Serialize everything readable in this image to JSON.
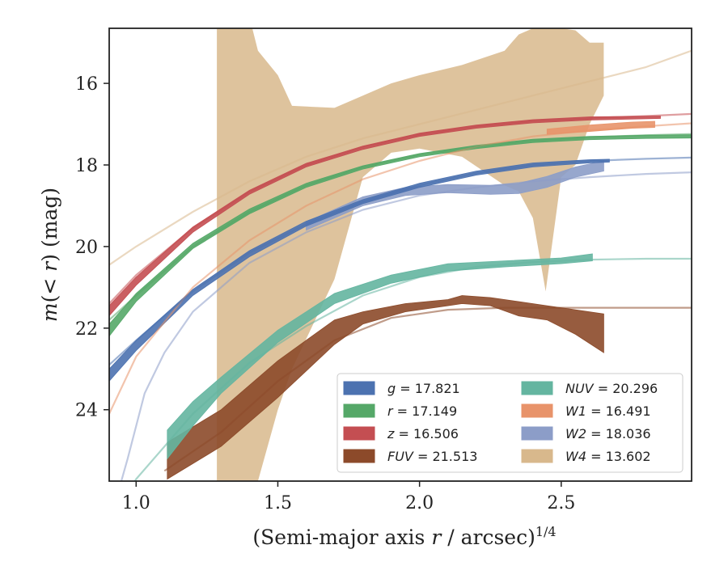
{
  "chart_data": {
    "type": "area",
    "title": "",
    "xlabel_pre": "(Semi-major axis ",
    "xlabel_var": "r",
    "xlabel_post": " / arcsec)",
    "xlabel_sup": "1/4",
    "ylabel_m": "m",
    "ylabel_mid": "(< ",
    "ylabel_r": "r",
    "ylabel_post": ") (mag)",
    "xlim": [
      0.905,
      2.96
    ],
    "ylim": [
      25.75,
      14.65
    ],
    "y_inverted": true,
    "grid": false,
    "legend_position": "lower-right",
    "xticks": [
      {
        "value": 1.0,
        "label": "1.0"
      },
      {
        "value": 1.5,
        "label": "1.5"
      },
      {
        "value": 2.0,
        "label": "2.0"
      },
      {
        "value": 2.5,
        "label": "2.5"
      }
    ],
    "yticks": [
      {
        "value": 16,
        "label": "16"
      },
      {
        "value": 18,
        "label": "18"
      },
      {
        "value": 20,
        "label": "20"
      },
      {
        "value": 22,
        "label": "22"
      },
      {
        "value": 24,
        "label": "24"
      }
    ],
    "series": [
      {
        "key": "g",
        "band": "g",
        "value": "17.821",
        "color": "#4c72b0",
        "legend_col": 0,
        "model": [
          [
            0.905,
            22.9
          ],
          [
            1.0,
            22.3
          ],
          [
            1.2,
            21.1
          ],
          [
            1.4,
            20.15
          ],
          [
            1.6,
            19.45
          ],
          [
            1.8,
            18.9
          ],
          [
            2.0,
            18.5
          ],
          [
            2.2,
            18.2
          ],
          [
            2.4,
            18.0
          ],
          [
            2.6,
            17.9
          ],
          [
            2.8,
            17.85
          ],
          [
            2.96,
            17.82
          ]
        ],
        "band_data": [
          [
            0.905,
            23.3,
            23.0
          ],
          [
            1.0,
            22.55,
            22.3
          ],
          [
            1.2,
            21.2,
            21.05
          ],
          [
            1.4,
            20.25,
            20.1
          ],
          [
            1.6,
            19.5,
            19.38
          ],
          [
            1.8,
            18.95,
            18.85
          ],
          [
            2.0,
            18.55,
            18.45
          ],
          [
            2.2,
            18.25,
            18.15
          ],
          [
            2.4,
            18.05,
            17.95
          ],
          [
            2.6,
            17.95,
            17.87
          ],
          [
            2.67,
            17.93,
            17.86
          ]
        ]
      },
      {
        "key": "r",
        "band": "r",
        "value": "17.149",
        "color": "#55a868",
        "legend_col": 0,
        "model": [
          [
            0.905,
            21.8
          ],
          [
            1.0,
            21.2
          ],
          [
            1.2,
            20.0
          ],
          [
            1.4,
            19.15
          ],
          [
            1.6,
            18.5
          ],
          [
            1.8,
            18.05
          ],
          [
            2.0,
            17.75
          ],
          [
            2.2,
            17.55
          ],
          [
            2.4,
            17.4
          ],
          [
            2.6,
            17.32
          ],
          [
            2.8,
            17.27
          ],
          [
            2.96,
            17.24
          ]
        ],
        "band_data": [
          [
            0.905,
            22.2,
            21.9
          ],
          [
            1.0,
            21.35,
            21.15
          ],
          [
            1.2,
            20.05,
            19.92
          ],
          [
            1.4,
            19.2,
            19.08
          ],
          [
            1.6,
            18.55,
            18.45
          ],
          [
            1.8,
            18.1,
            18.02
          ],
          [
            2.0,
            17.8,
            17.72
          ],
          [
            2.2,
            17.6,
            17.52
          ],
          [
            2.4,
            17.45,
            17.37
          ],
          [
            2.6,
            17.38,
            17.3
          ],
          [
            2.8,
            17.35,
            17.27
          ],
          [
            2.96,
            17.34,
            17.26
          ]
        ]
      },
      {
        "key": "z",
        "band": "z",
        "value": "16.506",
        "color": "#c44e52",
        "legend_col": 0,
        "model": [
          [
            0.905,
            21.4
          ],
          [
            1.0,
            20.7
          ],
          [
            1.2,
            19.55
          ],
          [
            1.4,
            18.65
          ],
          [
            1.6,
            18.0
          ],
          [
            1.8,
            17.55
          ],
          [
            2.0,
            17.25
          ],
          [
            2.2,
            17.05
          ],
          [
            2.4,
            16.92
          ],
          [
            2.6,
            16.85
          ],
          [
            2.8,
            16.8
          ],
          [
            2.96,
            16.75
          ]
        ],
        "band_data": [
          [
            0.905,
            21.7,
            21.45
          ],
          [
            1.0,
            20.95,
            20.75
          ],
          [
            1.2,
            19.65,
            19.52
          ],
          [
            1.4,
            18.72,
            18.62
          ],
          [
            1.6,
            18.05,
            17.96
          ],
          [
            1.8,
            17.62,
            17.54
          ],
          [
            2.0,
            17.3,
            17.22
          ],
          [
            2.2,
            17.1,
            17.02
          ],
          [
            2.4,
            16.97,
            16.89
          ],
          [
            2.6,
            16.9,
            16.82
          ],
          [
            2.85,
            16.86,
            16.8
          ]
        ]
      },
      {
        "key": "FUV",
        "band": "FUV",
        "value": "21.513",
        "color": "#8c4a2a",
        "legend_col": 0,
        "model": [
          [
            1.1,
            25.5
          ],
          [
            1.3,
            24.55
          ],
          [
            1.5,
            23.3
          ],
          [
            1.7,
            22.3
          ],
          [
            1.9,
            21.75
          ],
          [
            2.1,
            21.55
          ],
          [
            2.3,
            21.5
          ],
          [
            2.5,
            21.5
          ],
          [
            2.7,
            21.5
          ],
          [
            2.96,
            21.5
          ]
        ],
        "band_data": [
          [
            1.11,
            25.7,
            24.8
          ],
          [
            1.3,
            24.9,
            24.0
          ],
          [
            1.5,
            23.7,
            22.8
          ],
          [
            1.7,
            22.4,
            21.8
          ],
          [
            1.8,
            21.9,
            21.6
          ],
          [
            1.95,
            21.6,
            21.4
          ],
          [
            2.1,
            21.45,
            21.3
          ],
          [
            2.15,
            21.4,
            21.2
          ],
          [
            2.25,
            21.45,
            21.25
          ],
          [
            2.35,
            21.7,
            21.35
          ],
          [
            2.45,
            21.8,
            21.45
          ],
          [
            2.55,
            22.15,
            21.55
          ],
          [
            2.65,
            22.6,
            21.65
          ]
        ]
      },
      {
        "key": "NUV",
        "band": "NUV",
        "value": "20.296",
        "color": "#64b5a0",
        "legend_col": 1,
        "model": [
          [
            0.905,
            26.8
          ],
          [
            1.0,
            25.7
          ],
          [
            1.2,
            24.1
          ],
          [
            1.4,
            22.85
          ],
          [
            1.6,
            21.95
          ],
          [
            1.8,
            21.2
          ],
          [
            2.0,
            20.75
          ],
          [
            2.2,
            20.5
          ],
          [
            2.4,
            20.38
          ],
          [
            2.6,
            20.32
          ],
          [
            2.8,
            20.3
          ],
          [
            2.96,
            20.3
          ]
        ],
        "band_data": [
          [
            1.11,
            25.2,
            24.5
          ],
          [
            1.2,
            24.4,
            23.8
          ],
          [
            1.3,
            23.6,
            23.2
          ],
          [
            1.5,
            22.35,
            22.05
          ],
          [
            1.7,
            21.4,
            21.15
          ],
          [
            1.9,
            20.9,
            20.7
          ],
          [
            2.1,
            20.6,
            20.42
          ],
          [
            2.3,
            20.5,
            20.35
          ],
          [
            2.5,
            20.42,
            20.28
          ],
          [
            2.61,
            20.35,
            20.18
          ]
        ]
      },
      {
        "key": "W1",
        "band": "W1",
        "value": "16.491",
        "color": "#e8936a",
        "legend_col": 1,
        "model": [
          [
            0.905,
            24.1
          ],
          [
            1.0,
            22.7
          ],
          [
            1.2,
            21.0
          ],
          [
            1.4,
            19.85
          ],
          [
            1.6,
            19.0
          ],
          [
            1.8,
            18.35
          ],
          [
            2.0,
            17.9
          ],
          [
            2.2,
            17.55
          ],
          [
            2.4,
            17.3
          ],
          [
            2.6,
            17.15
          ],
          [
            2.8,
            17.05
          ],
          [
            2.96,
            16.98
          ]
        ],
        "band_data": [
          [
            2.45,
            17.25,
            17.12
          ],
          [
            2.6,
            17.18,
            17.02
          ],
          [
            2.75,
            17.1,
            16.95
          ],
          [
            2.83,
            17.08,
            16.93
          ]
        ]
      },
      {
        "key": "W2",
        "band": "W2",
        "value": "18.036",
        "color": "#8c9dc8",
        "legend_col": 1,
        "model": [
          [
            0.905,
            26.8
          ],
          [
            0.97,
            25.2
          ],
          [
            1.03,
            23.6
          ],
          [
            1.1,
            22.6
          ],
          [
            1.2,
            21.6
          ],
          [
            1.4,
            20.4
          ],
          [
            1.6,
            19.65
          ],
          [
            1.8,
            19.1
          ],
          [
            2.0,
            18.75
          ],
          [
            2.2,
            18.55
          ],
          [
            2.4,
            18.4
          ],
          [
            2.6,
            18.3
          ],
          [
            2.8,
            18.22
          ],
          [
            2.96,
            18.18
          ]
        ],
        "band_data": [
          [
            1.6,
            19.6,
            19.4
          ],
          [
            1.8,
            19.0,
            18.78
          ],
          [
            1.95,
            18.75,
            18.55
          ],
          [
            2.1,
            18.68,
            18.48
          ],
          [
            2.25,
            18.72,
            18.5
          ],
          [
            2.35,
            18.7,
            18.45
          ],
          [
            2.45,
            18.55,
            18.28
          ],
          [
            2.55,
            18.3,
            18.05
          ],
          [
            2.65,
            18.15,
            17.9
          ]
        ]
      },
      {
        "key": "W4",
        "band": "W4",
        "value": "13.602",
        "color": "#d8b88c",
        "legend_col": 1,
        "model": [
          [
            0.905,
            20.45
          ],
          [
            1.0,
            20.0
          ],
          [
            1.2,
            19.15
          ],
          [
            1.4,
            18.4
          ],
          [
            1.6,
            17.8
          ],
          [
            1.8,
            17.35
          ],
          [
            2.0,
            17.0
          ],
          [
            2.2,
            16.65
          ],
          [
            2.4,
            16.3
          ],
          [
            2.6,
            15.95
          ],
          [
            2.8,
            15.6
          ],
          [
            2.96,
            15.2
          ]
        ],
        "band_data": [
          [
            1.285,
            25.75,
            14.65
          ],
          [
            1.41,
            25.75,
            14.65
          ],
          [
            1.43,
            25.75,
            15.2
          ],
          [
            1.5,
            24.0,
            15.8
          ],
          [
            1.55,
            23.0,
            16.55
          ],
          [
            1.7,
            20.8,
            16.6
          ],
          [
            1.8,
            18.3,
            16.3
          ],
          [
            1.9,
            17.7,
            16.0
          ],
          [
            2.0,
            17.6,
            15.8
          ],
          [
            2.15,
            17.8,
            15.55
          ],
          [
            2.3,
            18.5,
            15.2
          ],
          [
            2.35,
            18.65,
            14.8
          ],
          [
            2.4,
            19.3,
            14.65
          ],
          [
            2.445,
            21.1,
            14.65
          ],
          [
            2.5,
            18.3,
            14.65
          ],
          [
            2.55,
            18.0,
            14.7
          ],
          [
            2.6,
            17.0,
            15.0
          ],
          [
            2.65,
            16.3,
            15.0
          ]
        ]
      }
    ]
  }
}
